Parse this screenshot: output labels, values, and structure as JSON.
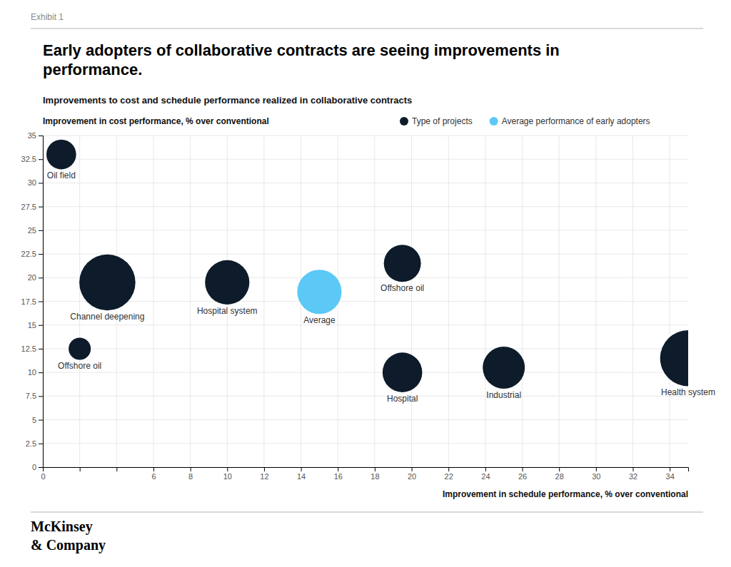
{
  "chart_data": {
    "type": "bubble",
    "title": "Early adopters of collaborative contracts are seeing improvements in\nperformance.",
    "subtitle": "Improvements to cost and schedule performance realized in collaborative contracts",
    "x_label": "Improvement in schedule performance, % over conventional",
    "y_label": "Improvement in cost performance, % over conventional",
    "annotations": [
      "Exhibit 1",
      "McKinsey",
      "& Company"
    ],
    "series": [
      {
        "name": "Type of projects",
        "color": "#0d1b2a",
        "x": [
          1.0,
          3.5,
          2.0,
          10.0,
          19.5,
          19.5,
          25.0,
          35.0
        ],
        "values": [
          33.0,
          19.5,
          12.5,
          19.5,
          21.5,
          10.0,
          10.5,
          11.5
        ],
        "sizes": [
          900,
          3200,
          500,
          2000,
          1400,
          1600,
          1800,
          3200
        ],
        "labels": [
          "Oil field",
          "Channel deepening",
          "Offshore oil",
          "Hospital system",
          "Offshore oil",
          "Hospital",
          "Industrial",
          "Health system"
        ]
      },
      {
        "name": "Average performance of early adopters",
        "color": "#5bc8f5",
        "x": [
          15.0
        ],
        "values": [
          18.5
        ],
        "sizes": [
          2000
        ],
        "labels": [
          "Average"
        ]
      }
    ],
    "xlim": [
      0,
      35
    ],
    "ylim": [
      0,
      35
    ],
    "xticks": [
      0,
      {
        "value": 2,
        "label": null
      },
      {
        "value": 4,
        "label": null
      },
      6,
      8,
      10,
      12,
      14,
      16,
      18,
      20,
      22,
      24,
      26,
      28,
      30,
      32,
      34
    ],
    "yticks": [
      0,
      2.5,
      5,
      7.5,
      10,
      12.5,
      15,
      17.5,
      20,
      22.5,
      25,
      27.5,
      30,
      32.5,
      35
    ],
    "grid": true,
    "legend": "top"
  }
}
